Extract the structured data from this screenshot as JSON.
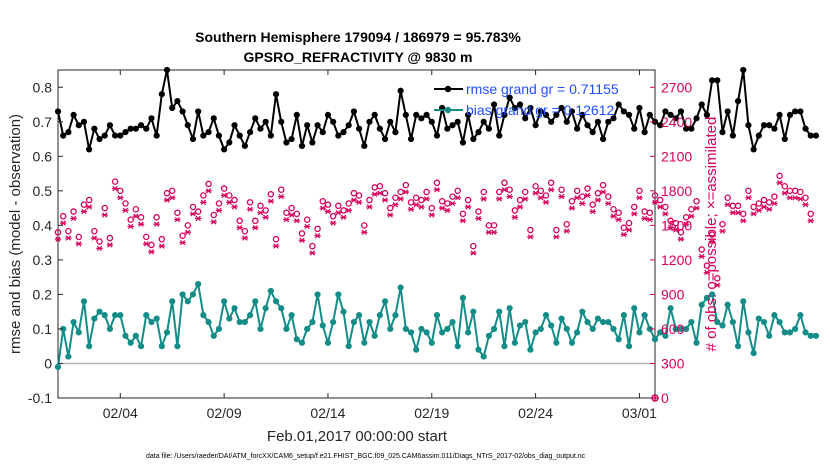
{
  "chart_data": {
    "type": "line",
    "title_line1": "Southern Hemisphere 179094 / 186979 = 95.783%",
    "title_line2": "GPSRO_REFRACTIVITY @ 9830 m",
    "xlabel": "Feb.01,2017 00:00:00 start",
    "ylabel_left": "rmse and bias (model - observation)",
    "ylabel_right": "# of obs: o=possible; ×=assimilated",
    "xlim": [
      1.0,
      29.75
    ],
    "ylim_left": [
      -0.1,
      0.85
    ],
    "ylim_right": [
      0,
      2850
    ],
    "x_ticks": [
      {
        "value": 4,
        "label": "02/04"
      },
      {
        "value": 9,
        "label": "02/09"
      },
      {
        "value": 14,
        "label": "02/14"
      },
      {
        "value": 19,
        "label": "02/19"
      },
      {
        "value": 24,
        "label": "02/24"
      },
      {
        "value": 29,
        "label": "03/01"
      }
    ],
    "y_ticks_left": [
      {
        "value": -0.1,
        "label": "-0.1"
      },
      {
        "value": 0,
        "label": "0"
      },
      {
        "value": 0.1,
        "label": "0.1"
      },
      {
        "value": 0.2,
        "label": "0.2"
      },
      {
        "value": 0.3,
        "label": "0.3"
      },
      {
        "value": 0.4,
        "label": "0.4"
      },
      {
        "value": 0.5,
        "label": "0.5"
      },
      {
        "value": 0.6,
        "label": "0.6"
      },
      {
        "value": 0.7,
        "label": "0.7"
      },
      {
        "value": 0.8,
        "label": "0.8"
      }
    ],
    "y_ticks_right": [
      {
        "value": 0,
        "label": "0"
      },
      {
        "value": 300,
        "label": "300"
      },
      {
        "value": 600,
        "label": "600"
      },
      {
        "value": 900,
        "label": "900"
      },
      {
        "value": 1200,
        "label": "1200"
      },
      {
        "value": 1500,
        "label": "1500"
      },
      {
        "value": 1800,
        "label": "1800"
      },
      {
        "value": 2100,
        "label": "2100"
      },
      {
        "value": 2400,
        "label": "2400"
      },
      {
        "value": 2700,
        "label": "2700"
      }
    ],
    "x_start": 1.0,
    "x_step": 0.25,
    "series": [
      {
        "name": "rmse grand gr = 0.71155",
        "axis": "left",
        "color": "#000000",
        "values": [
          0.73,
          0.66,
          0.67,
          0.72,
          0.69,
          0.7,
          0.62,
          0.68,
          0.65,
          0.66,
          0.69,
          0.66,
          0.66,
          0.67,
          0.68,
          0.68,
          0.69,
          0.68,
          0.71,
          0.66,
          0.78,
          0.85,
          0.74,
          0.76,
          0.73,
          0.69,
          0.65,
          0.73,
          0.66,
          0.67,
          0.71,
          0.66,
          0.62,
          0.64,
          0.69,
          0.66,
          0.63,
          0.67,
          0.71,
          0.68,
          0.7,
          0.66,
          0.78,
          0.7,
          0.64,
          0.65,
          0.72,
          0.63,
          0.69,
          0.64,
          0.69,
          0.67,
          0.72,
          0.7,
          0.66,
          0.67,
          0.69,
          0.73,
          0.68,
          0.63,
          0.7,
          0.72,
          0.68,
          0.65,
          0.7,
          0.67,
          0.79,
          0.72,
          0.65,
          0.72,
          0.71,
          0.72,
          0.7,
          0.66,
          0.74,
          0.68,
          0.69,
          0.7,
          0.64,
          0.72,
          0.65,
          0.67,
          0.7,
          0.68,
          0.75,
          0.66,
          0.72,
          0.77,
          0.74,
          0.75,
          0.71,
          0.74,
          0.69,
          0.73,
          0.72,
          0.7,
          0.72,
          0.74,
          0.7,
          0.73,
          0.68,
          0.72,
          0.69,
          0.67,
          0.7,
          0.65,
          0.7,
          0.71,
          0.75,
          0.73,
          0.72,
          0.68,
          0.74,
          0.67,
          0.72,
          0.7,
          0.69,
          0.73,
          0.72,
          0.71,
          0.73,
          0.68,
          0.68,
          0.71,
          0.75,
          0.72,
          0.82,
          0.82,
          0.67,
          0.73,
          0.66,
          0.76,
          0.85,
          0.69,
          0.62,
          0.66,
          0.69,
          0.69,
          0.68,
          0.72,
          0.65,
          0.72,
          0.73,
          0.73,
          0.68,
          0.66,
          0.66
        ]
      },
      {
        "name": "bias grand gr = 0.12612",
        "axis": "left",
        "color": "#148c87",
        "values": [
          -0.01,
          0.1,
          0.02,
          0.12,
          0.09,
          0.18,
          0.05,
          0.13,
          0.15,
          0.14,
          0.1,
          0.14,
          0.14,
          0.08,
          0.06,
          0.08,
          0.05,
          0.14,
          0.12,
          0.13,
          0.05,
          0.09,
          0.18,
          0.05,
          0.2,
          0.18,
          0.2,
          0.23,
          0.14,
          0.12,
          0.08,
          0.1,
          0.18,
          0.13,
          0.16,
          0.12,
          0.12,
          0.14,
          0.18,
          0.1,
          0.16,
          0.21,
          0.18,
          0.16,
          0.1,
          0.14,
          0.07,
          0.06,
          0.1,
          0.12,
          0.2,
          0.11,
          0.06,
          0.12,
          0.2,
          0.15,
          0.05,
          0.12,
          0.14,
          0.06,
          0.12,
          0.08,
          0.14,
          0.18,
          0.1,
          0.14,
          0.22,
          0.1,
          0.09,
          0.04,
          0.1,
          0.09,
          0.06,
          0.14,
          0.09,
          0.1,
          0.12,
          0.05,
          0.19,
          0.09,
          0.15,
          0.04,
          0.02,
          0.08,
          0.1,
          0.15,
          0.05,
          0.16,
          0.06,
          0.11,
          0.12,
          0.04,
          0.09,
          0.1,
          0.14,
          0.11,
          0.06,
          0.13,
          0.1,
          0.06,
          0.09,
          0.15,
          0.12,
          0.1,
          0.13,
          0.12,
          0.12,
          0.1,
          0.07,
          0.14,
          0.05,
          0.16,
          0.09,
          0.14,
          0.1,
          0.07,
          0.09,
          0.08,
          0.16,
          0.1,
          0.1,
          0.1,
          0.12,
          0.06,
          0.17,
          0.19,
          0.2,
          0.12,
          0.11,
          0.17,
          0.12,
          0.05,
          0.18,
          0.09,
          0.03,
          0.13,
          0.12,
          0.08,
          0.14,
          0.12,
          0.09,
          0.09,
          0.1,
          0.14,
          0.09,
          0.08,
          0.08
        ]
      },
      {
        "name": "obs possible",
        "axis": "right",
        "color": "#d6005c",
        "values": [
          1440,
          1580,
          1450,
          1620,
          1400,
          1680,
          1720,
          1450,
          1360,
          1650,
          1390,
          1880,
          1800,
          1690,
          1550,
          1640,
          1570,
          1400,
          1330,
          1570,
          1380,
          1780,
          1800,
          1610,
          1410,
          1500,
          1660,
          1620,
          1760,
          1860,
          1590,
          1690,
          1820,
          1760,
          1720,
          1540,
          1450,
          1700,
          1540,
          1670,
          1630,
          1770,
          1380,
          1810,
          1610,
          1650,
          1600,
          1430,
          1550,
          1320,
          1470,
          1710,
          1680,
          1580,
          1670,
          1630,
          1690,
          1780,
          1760,
          1500,
          1720,
          1830,
          1840,
          1780,
          1650,
          1740,
          1790,
          1850,
          1700,
          1740,
          1720,
          1790,
          1650,
          1870,
          1710,
          1690,
          1750,
          1800,
          1600,
          1720,
          1320,
          1620,
          1790,
          1500,
          1500,
          1790,
          1870,
          1810,
          1630,
          1720,
          1790,
          1460,
          1840,
          1800,
          1760,
          1870,
          1460,
          1810,
          1510,
          1710,
          1800,
          1750,
          1820,
          1680,
          1780,
          1850,
          1750,
          1640,
          1610,
          1480,
          1520,
          1660,
          1800,
          1620,
          1610,
          1760,
          1720,
          1660,
          1540,
          1520,
          1440,
          1570,
          1640,
          1710,
          1290,
          1150,
          1420,
          1040,
          1510,
          1740,
          1670,
          1670,
          1600,
          1800,
          1660,
          1690,
          1720,
          1700,
          1750,
          1930,
          1840,
          1800,
          1800,
          1790,
          1740,
          1600
        ]
      },
      {
        "name": "obs assimilated",
        "axis": "right",
        "color": "#d6005c",
        "values": [
          1380,
          1520,
          1390,
          1560,
          1340,
          1620,
          1660,
          1390,
          1300,
          1590,
          1330,
          1820,
          1740,
          1630,
          1490,
          1580,
          1510,
          1340,
          1270,
          1510,
          1320,
          1720,
          1740,
          1550,
          1350,
          1440,
          1600,
          1560,
          1700,
          1800,
          1530,
          1630,
          1760,
          1700,
          1660,
          1480,
          1390,
          1640,
          1480,
          1610,
          1570,
          1710,
          1320,
          1750,
          1550,
          1590,
          1540,
          1370,
          1490,
          1260,
          1410,
          1650,
          1620,
          1520,
          1610,
          1570,
          1630,
          1720,
          1700,
          1440,
          1660,
          1770,
          1780,
          1720,
          1590,
          1680,
          1730,
          1790,
          1640,
          1680,
          1660,
          1730,
          1590,
          1810,
          1650,
          1630,
          1690,
          1740,
          1540,
          1660,
          1260,
          1560,
          1730,
          1440,
          1440,
          1730,
          1810,
          1750,
          1570,
          1660,
          1730,
          1400,
          1780,
          1740,
          1700,
          1810,
          1400,
          1750,
          1450,
          1650,
          1740,
          1690,
          1760,
          1620,
          1720,
          1790,
          1690,
          1580,
          1550,
          1420,
          1460,
          1600,
          1740,
          1560,
          1550,
          1700,
          1660,
          1600,
          1480,
          1460,
          1380,
          1510,
          1580,
          1650,
          1230,
          1090,
          1360,
          980,
          1450,
          1680,
          1610,
          1610,
          1540,
          1740,
          1600,
          1630,
          1660,
          1640,
          1690,
          1870,
          1780,
          1740,
          1740,
          1730,
          1680,
          1540
        ]
      }
    ],
    "extra_point": {
      "x": 29.75,
      "value": 0,
      "axis": "right"
    },
    "zero_line": 0,
    "legend_position": "top-right",
    "footnote": "data file: /Users/raeder/DAI/ATM_forcXX/CAM6_setup/f.e21.FHIST_BGC.f09_025.CAM6assim.011/Diags_NTrS_2017-02/obs_diag_output.nc"
  }
}
